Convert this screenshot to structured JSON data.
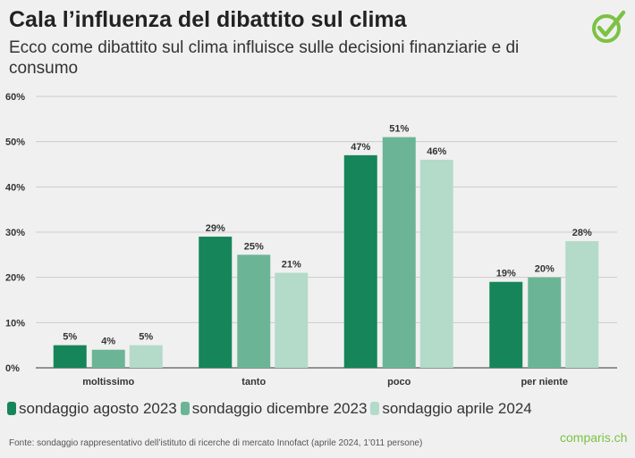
{
  "title": "Cala l’influenza del dibattito sul clima",
  "subtitle": "Ecco come dibattito sul clima influisce sulle decisioni finanziarie e di consumo",
  "source": "Fonte: sondaggio rappresentativo dell’istituto di ricerche di mercato Innofact (aprile 2024, 1’011 persone)",
  "brand": "comparis.ch",
  "logo_icon": "check-circle-icon",
  "chart_data": {
    "type": "bar",
    "categories": [
      "moltissimo",
      "tanto",
      "poco",
      "per niente"
    ],
    "series": [
      {
        "name": "sondaggio agosto 2023",
        "color": "#16855a",
        "values": [
          5,
          29,
          47,
          19
        ]
      },
      {
        "name": "sondaggio dicembre 2023",
        "color": "#6bb596",
        "values": [
          4,
          25,
          51,
          20
        ]
      },
      {
        "name": "sondaggio aprile 2024",
        "color": "#b4dac9",
        "values": [
          5,
          21,
          46,
          28
        ]
      }
    ],
    "ylim": [
      0,
      60
    ],
    "yticks": [
      "0%",
      "10%",
      "20%",
      "30%",
      "40%",
      "50%",
      "60%"
    ],
    "grid": true,
    "legend": "bottom"
  }
}
